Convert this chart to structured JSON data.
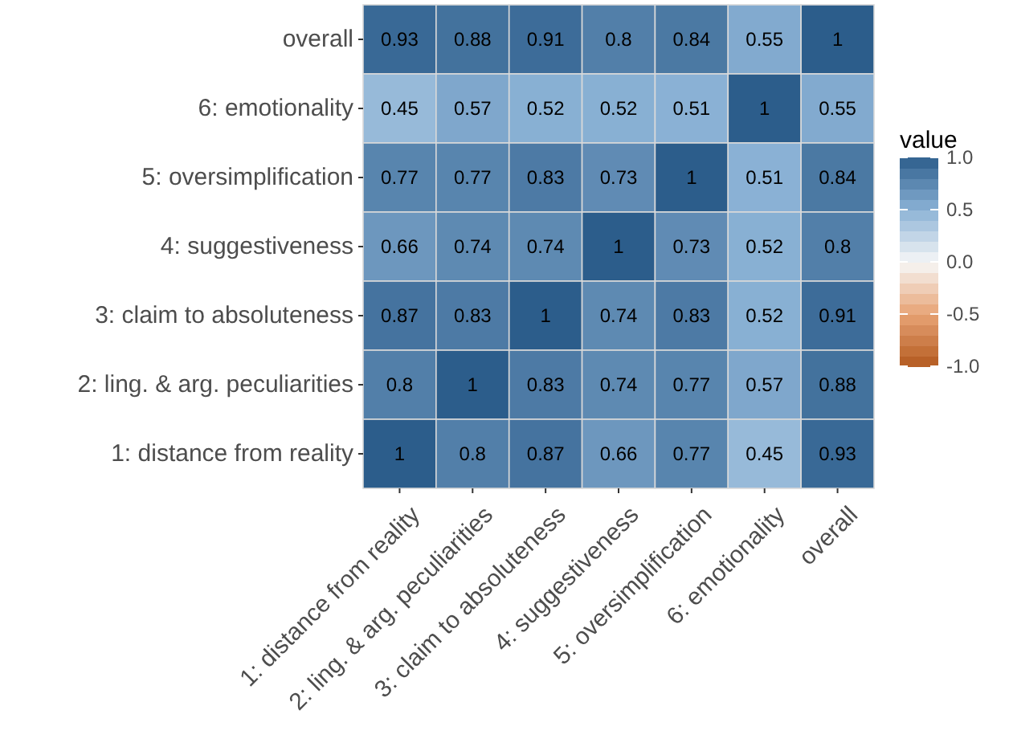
{
  "chart_data": {
    "type": "heatmap",
    "categories": [
      "1: distance from reality",
      "2: ling. & arg. peculiarities",
      "3: claim to absoluteness",
      "4: suggestiveness",
      "5: oversimplification",
      "6: emotionality",
      "overall"
    ],
    "y_categories": [
      "overall",
      "6: emotionality",
      "5: oversimplification",
      "4: suggestiveness",
      "3: claim to absoluteness",
      "2: ling. & arg. peculiarities",
      "1: distance from reality"
    ],
    "cells": [
      [
        0.93,
        0.88,
        0.91,
        0.8,
        0.84,
        0.55,
        1
      ],
      [
        0.45,
        0.57,
        0.52,
        0.52,
        0.51,
        1,
        0.55
      ],
      [
        0.77,
        0.77,
        0.83,
        0.73,
        1,
        0.51,
        0.84
      ],
      [
        0.66,
        0.74,
        0.74,
        1,
        0.73,
        0.52,
        0.8
      ],
      [
        0.87,
        0.83,
        1,
        0.74,
        0.83,
        0.52,
        0.91
      ],
      [
        0.8,
        1,
        0.83,
        0.74,
        0.77,
        0.57,
        0.88
      ],
      [
        1,
        0.8,
        0.87,
        0.66,
        0.77,
        0.45,
        0.93
      ]
    ],
    "data_labels": true,
    "legend_title": "value",
    "clim": [
      -1,
      1
    ],
    "cticks": [
      {
        "value": 1,
        "label": "1.0"
      },
      {
        "value": 0.5,
        "label": "0.5"
      },
      {
        "value": 0,
        "label": "0.0"
      },
      {
        "value": -0.5,
        "label": "-0.5"
      },
      {
        "value": -1,
        "label": "-1.0"
      }
    ]
  }
}
